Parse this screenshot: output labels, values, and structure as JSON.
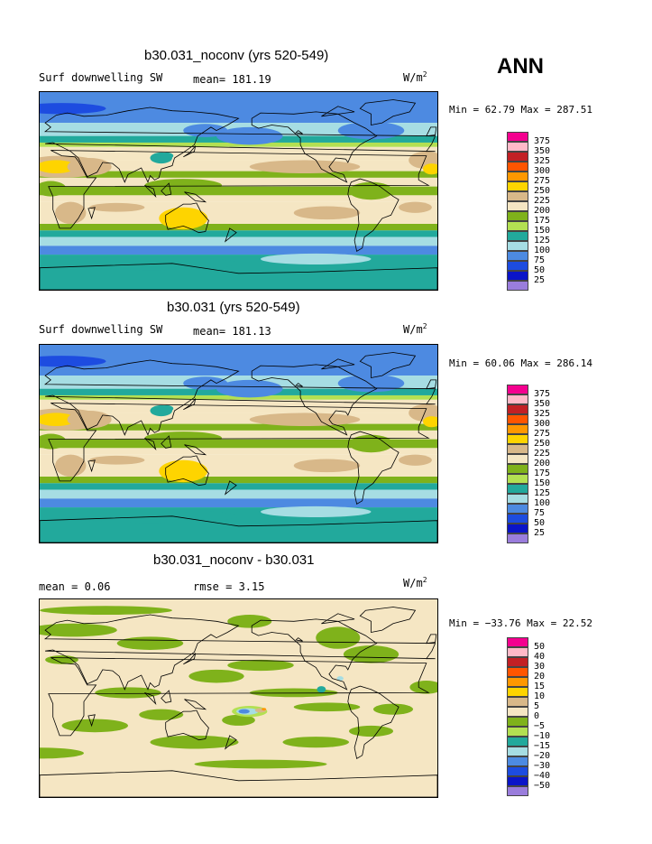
{
  "season_label": "ANN",
  "panels": [
    {
      "title": "b30.031_noconv (yrs 520-549)",
      "left_text": "Surf downwelling SW",
      "mid_text": "mean= 181.19",
      "units_base": "W/m",
      "units_exp": "2",
      "minmax": "Min =  62.79 Max = 287.51"
    },
    {
      "title": "b30.031 (yrs 520-549)",
      "left_text": "Surf downwelling SW",
      "mid_text": "mean= 181.13",
      "units_base": "W/m",
      "units_exp": "2",
      "minmax": "Min =  60.06 Max = 286.14"
    },
    {
      "title": "b30.031_noconv - b30.031",
      "left_text": "mean =    0.06",
      "mid_text": "rmse =    3.15",
      "units_base": "W/m",
      "units_exp": "2",
      "minmax": "Min = −33.76 Max =  22.52"
    }
  ],
  "colors": {
    "levels": [
      "#f4008f",
      "#ffb9c8",
      "#c22025",
      "#ff5500",
      "#ff9800",
      "#fed400",
      "#d8b889",
      "#f5e6c3",
      "#7fb21b",
      "#b3e052",
      "#22a99c",
      "#a6dde3",
      "#4d8ae1",
      "#1d4ce0",
      "#0a14c8",
      "#9a7ddc"
    ]
  },
  "chart_data": [
    {
      "type": "heatmap",
      "title": "b30.031_noconv (yrs 520-549)",
      "variable": "Surf downwelling SW",
      "units": "W/m2",
      "mean": 181.19,
      "min": 62.79,
      "max": 287.51,
      "colorbar_levels": [
        "375",
        "350",
        "325",
        "300",
        "275",
        "250",
        "225",
        "200",
        "175",
        "150",
        "125",
        "100",
        "75",
        "50",
        "25"
      ],
      "zonal_bands": [
        {
          "lat": [
            60,
            90
          ],
          "value": 75
        },
        {
          "lat": [
            45,
            60
          ],
          "value": 100
        },
        {
          "lat": [
            35,
            45
          ],
          "value": 150
        },
        {
          "lat": [
            10,
            35
          ],
          "value": 225
        },
        {
          "lat": [
            -10,
            10
          ],
          "value": 225
        },
        {
          "lat": [
            -35,
            -10
          ],
          "value": 225
        },
        {
          "lat": [
            -45,
            -35
          ],
          "value": 150
        },
        {
          "lat": [
            -60,
            -45
          ],
          "value": 100
        },
        {
          "lat": [
            -90,
            -60
          ],
          "value": 125
        }
      ]
    },
    {
      "type": "heatmap",
      "title": "b30.031 (yrs 520-549)",
      "variable": "Surf downwelling SW",
      "units": "W/m2",
      "mean": 181.13,
      "min": 60.06,
      "max": 286.14,
      "colorbar_levels": [
        "375",
        "350",
        "325",
        "300",
        "275",
        "250",
        "225",
        "200",
        "175",
        "150",
        "125",
        "100",
        "75",
        "50",
        "25"
      ],
      "zonal_bands": [
        {
          "lat": [
            60,
            90
          ],
          "value": 75
        },
        {
          "lat": [
            45,
            60
          ],
          "value": 100
        },
        {
          "lat": [
            35,
            45
          ],
          "value": 150
        },
        {
          "lat": [
            10,
            35
          ],
          "value": 225
        },
        {
          "lat": [
            -10,
            10
          ],
          "value": 225
        },
        {
          "lat": [
            -35,
            -10
          ],
          "value": 225
        },
        {
          "lat": [
            -45,
            -35
          ],
          "value": 150
        },
        {
          "lat": [
            -60,
            -45
          ],
          "value": 100
        },
        {
          "lat": [
            -90,
            -60
          ],
          "value": 125
        }
      ]
    },
    {
      "type": "heatmap",
      "title": "b30.031_noconv - b30.031",
      "units": "W/m2",
      "mean": 0.06,
      "rmse": 3.15,
      "min": -33.76,
      "max": 22.52,
      "colorbar_levels": [
        "50",
        "40",
        "30",
        "20",
        "15",
        "10",
        "5",
        "0",
        "−5",
        "−10",
        "−15",
        "−20",
        "−30",
        "−40",
        "−50"
      ]
    }
  ]
}
